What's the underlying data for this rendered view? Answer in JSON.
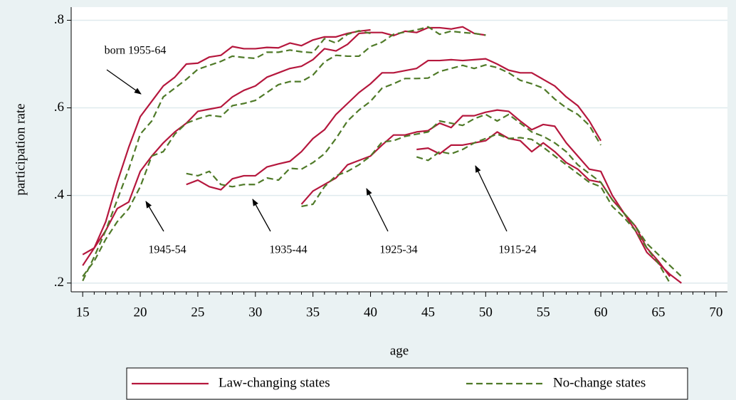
{
  "chart_data": {
    "type": "line",
    "xlabel": "age",
    "ylabel": "participation rate",
    "xlim": [
      14,
      71
    ],
    "ylim": [
      0.18,
      0.83
    ],
    "xticks": [
      15,
      20,
      25,
      30,
      35,
      40,
      45,
      50,
      55,
      60,
      65,
      70
    ],
    "yticks": [
      {
        "value": 0.2,
        "label": ".2"
      },
      {
        "value": 0.4,
        "label": ".4"
      },
      {
        "value": 0.6,
        "label": ".6"
      },
      {
        "value": 0.8,
        "label": ".8"
      }
    ],
    "grid": true,
    "legend": "bottom",
    "annotations": [
      "born 1955-64",
      "1945-54",
      "1935-44",
      "1925-34",
      "1915-24"
    ],
    "series": [
      {
        "name": "Law-changing states",
        "color": "#b5173d",
        "dashed": false,
        "cohorts": [
          {
            "x": [
              15,
              16,
              17,
              18,
              19,
              20,
              21,
              22,
              23,
              24,
              25,
              26,
              27,
              28,
              29,
              30,
              31,
              32,
              33,
              34,
              35,
              36,
              37,
              38,
              39,
              40
            ],
            "values": [
              0.24,
              0.28,
              0.34,
              0.43,
              0.51,
              0.58,
              0.615,
              0.65,
              0.67,
              0.7,
              0.702,
              0.716,
              0.72,
              0.74,
              0.735,
              0.735,
              0.738,
              0.737,
              0.748,
              0.742,
              0.755,
              0.762,
              0.762,
              0.77,
              0.775,
              0.778
            ]
          },
          {
            "x": [
              15,
              16,
              17,
              18,
              19,
              20,
              21,
              22,
              23,
              24,
              25,
              26,
              27,
              28,
              29,
              30,
              31,
              32,
              33,
              34,
              35,
              36,
              37,
              38,
              39,
              40,
              41,
              42,
              43,
              44,
              45,
              46,
              47,
              48,
              49,
              50
            ],
            "values": [
              0.265,
              0.28,
              0.32,
              0.37,
              0.385,
              0.455,
              0.49,
              0.52,
              0.545,
              0.565,
              0.592,
              0.597,
              0.602,
              0.625,
              0.64,
              0.65,
              0.67,
              0.68,
              0.69,
              0.695,
              0.71,
              0.735,
              0.73,
              0.745,
              0.77,
              0.772,
              0.772,
              0.765,
              0.775,
              0.772,
              0.783,
              0.783,
              0.78,
              0.785,
              0.77,
              0.766
            ]
          },
          {
            "x": [
              24,
              25,
              26,
              27,
              28,
              29,
              30,
              31,
              32,
              33,
              34,
              35,
              36,
              37,
              38,
              39,
              40,
              41,
              42,
              43,
              44,
              45,
              46,
              47,
              48,
              49,
              50,
              51,
              52,
              53,
              54,
              55,
              56,
              57,
              58,
              59,
              60
            ],
            "values": [
              0.425,
              0.435,
              0.42,
              0.413,
              0.438,
              0.445,
              0.445,
              0.465,
              0.472,
              0.478,
              0.5,
              0.53,
              0.55,
              0.585,
              0.61,
              0.635,
              0.655,
              0.68,
              0.68,
              0.685,
              0.69,
              0.708,
              0.708,
              0.71,
              0.708,
              0.71,
              0.712,
              0.7,
              0.686,
              0.68,
              0.68,
              0.665,
              0.65,
              0.625,
              0.605,
              0.57,
              0.525
            ]
          },
          {
            "x": [
              34,
              35,
              36,
              37,
              38,
              39,
              40,
              41,
              42,
              43,
              44,
              45,
              46,
              47,
              48,
              49,
              50,
              51,
              52,
              53,
              54,
              55,
              56,
              57,
              58,
              59,
              60,
              61,
              62,
              63,
              64,
              65,
              66,
              67
            ],
            "values": [
              0.38,
              0.41,
              0.425,
              0.44,
              0.47,
              0.48,
              0.49,
              0.515,
              0.538,
              0.538,
              0.545,
              0.548,
              0.565,
              0.555,
              0.582,
              0.582,
              0.59,
              0.595,
              0.592,
              0.57,
              0.55,
              0.562,
              0.558,
              0.52,
              0.49,
              0.46,
              0.455,
              0.4,
              0.36,
              0.32,
              0.27,
              0.245,
              0.22,
              0.2
            ]
          },
          {
            "x": [
              44,
              45,
              46,
              47,
              48,
              49,
              50,
              51,
              52,
              53,
              54,
              55,
              56,
              57,
              58,
              59,
              60,
              61,
              62,
              63,
              64,
              65,
              66
            ],
            "values": [
              0.505,
              0.508,
              0.495,
              0.515,
              0.515,
              0.52,
              0.525,
              0.545,
              0.53,
              0.525,
              0.5,
              0.52,
              0.5,
              0.475,
              0.46,
              0.435,
              0.43,
              0.39,
              0.36,
              0.33,
              0.28,
              0.25,
              0.215
            ]
          }
        ]
      },
      {
        "name": "No-change states",
        "color": "#4f7a28",
        "dashed": true,
        "cohorts": [
          {
            "x": [
              15,
              16,
              17,
              18,
              19,
              20,
              21,
              22,
              23,
              24,
              25,
              26,
              27,
              28,
              29,
              30,
              31,
              32,
              33,
              34,
              35,
              36,
              37,
              38,
              39,
              40
            ],
            "values": [
              0.205,
              0.26,
              0.32,
              0.39,
              0.46,
              0.54,
              0.57,
              0.625,
              0.645,
              0.665,
              0.688,
              0.697,
              0.706,
              0.718,
              0.715,
              0.713,
              0.727,
              0.727,
              0.732,
              0.728,
              0.726,
              0.758,
              0.748,
              0.768,
              0.776,
              0.77
            ]
          },
          {
            "x": [
              15,
              16,
              17,
              18,
              19,
              20,
              21,
              22,
              23,
              24,
              25,
              26,
              27,
              28,
              29,
              30,
              31,
              32,
              33,
              34,
              35,
              36,
              37,
              38,
              39,
              40,
              41,
              42,
              43,
              44,
              45,
              46,
              47,
              48,
              49,
              50
            ],
            "values": [
              0.215,
              0.25,
              0.3,
              0.34,
              0.37,
              0.42,
              0.49,
              0.5,
              0.54,
              0.565,
              0.575,
              0.583,
              0.58,
              0.605,
              0.61,
              0.617,
              0.635,
              0.653,
              0.66,
              0.66,
              0.675,
              0.705,
              0.72,
              0.718,
              0.718,
              0.74,
              0.75,
              0.768,
              0.773,
              0.778,
              0.785,
              0.768,
              0.775,
              0.772,
              0.77,
              0.766
            ]
          },
          {
            "x": [
              24,
              25,
              26,
              27,
              28,
              29,
              30,
              31,
              32,
              33,
              34,
              35,
              36,
              37,
              38,
              39,
              40,
              41,
              42,
              43,
              44,
              45,
              46,
              47,
              48,
              49,
              50,
              51,
              52,
              53,
              54,
              55,
              56,
              57,
              58,
              59,
              60
            ],
            "values": [
              0.45,
              0.445,
              0.455,
              0.425,
              0.42,
              0.425,
              0.425,
              0.44,
              0.435,
              0.462,
              0.46,
              0.475,
              0.495,
              0.53,
              0.57,
              0.595,
              0.615,
              0.645,
              0.655,
              0.667,
              0.667,
              0.668,
              0.683,
              0.69,
              0.697,
              0.69,
              0.698,
              0.692,
              0.68,
              0.663,
              0.655,
              0.645,
              0.62,
              0.6,
              0.585,
              0.56,
              0.515
            ]
          },
          {
            "x": [
              34,
              35,
              36,
              37,
              38,
              39,
              40,
              41,
              42,
              43,
              44,
              45,
              46,
              47,
              48,
              49,
              50,
              51,
              52,
              53,
              54,
              55,
              56,
              57,
              58,
              59,
              60,
              61,
              62,
              63,
              64,
              65,
              66,
              67
            ],
            "values": [
              0.375,
              0.38,
              0.42,
              0.445,
              0.455,
              0.47,
              0.49,
              0.522,
              0.525,
              0.535,
              0.54,
              0.545,
              0.57,
              0.565,
              0.56,
              0.575,
              0.585,
              0.57,
              0.585,
              0.565,
              0.545,
              0.535,
              0.52,
              0.5,
              0.47,
              0.45,
              0.43,
              0.39,
              0.36,
              0.33,
              0.29,
              0.265,
              0.24,
              0.215
            ]
          },
          {
            "x": [
              44,
              45,
              46,
              47,
              48,
              49,
              50,
              51,
              52,
              53,
              54,
              55,
              56,
              57,
              58,
              59,
              60,
              61,
              62,
              63,
              64,
              65,
              66
            ],
            "values": [
              0.488,
              0.48,
              0.5,
              0.495,
              0.505,
              0.52,
              0.53,
              0.54,
              0.53,
              0.532,
              0.528,
              0.51,
              0.49,
              0.47,
              0.45,
              0.43,
              0.42,
              0.375,
              0.35,
              0.32,
              0.28,
              0.245,
              0.2
            ]
          }
        ]
      }
    ]
  }
}
